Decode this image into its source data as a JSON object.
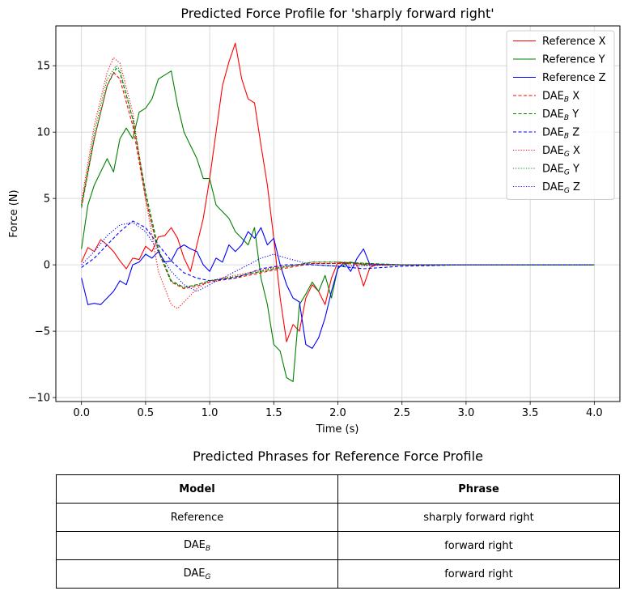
{
  "chart_data": {
    "type": "line",
    "title": "Predicted Force Profile for 'sharply forward right'",
    "xlabel": "Time (s)",
    "ylabel": "Force (N)",
    "xlim": [
      -0.2,
      4.2
    ],
    "ylim": [
      -10.3,
      18.0
    ],
    "xticks": [
      0.0,
      0.5,
      1.0,
      1.5,
      2.0,
      2.5,
      3.0,
      3.5,
      4.0
    ],
    "xtick_labels": [
      "0.0",
      "0.5",
      "1.0",
      "1.5",
      "2.0",
      "2.5",
      "3.0",
      "3.5",
      "4.0"
    ],
    "yticks": [
      -10,
      -5,
      0,
      5,
      10,
      15
    ],
    "ytick_labels": [
      "−10",
      "−5",
      "0",
      "5",
      "10",
      "15"
    ],
    "grid": true,
    "legend_position": "top-right",
    "series": [
      {
        "name": "Reference X",
        "legend_main": "Reference X",
        "legend_sub": "",
        "legend_suffix": "",
        "color": "#ff0000",
        "dash": "solid",
        "x": [
          0,
          0.05,
          0.1,
          0.15,
          0.2,
          0.25,
          0.3,
          0.35,
          0.4,
          0.45,
          0.5,
          0.55,
          0.6,
          0.65,
          0.7,
          0.75,
          0.8,
          0.85,
          0.9,
          0.95,
          1.0,
          1.05,
          1.1,
          1.15,
          1.2,
          1.25,
          1.3,
          1.35,
          1.4,
          1.45,
          1.5,
          1.55,
          1.6,
          1.65,
          1.7,
          1.75,
          1.8,
          1.85,
          1.9,
          1.95,
          2.0,
          2.05,
          2.1,
          2.15,
          2.2,
          2.25,
          2.3,
          2.5,
          3.0,
          3.5,
          4.0
        ],
        "y": [
          0.2,
          1.3,
          1.0,
          1.9,
          1.5,
          1.0,
          0.3,
          -0.3,
          0.5,
          0.4,
          1.4,
          1.0,
          2.1,
          2.2,
          2.8,
          2.0,
          0.5,
          -0.5,
          1.5,
          3.5,
          6.5,
          10.0,
          13.5,
          15.3,
          16.7,
          14.0,
          12.5,
          12.2,
          9.0,
          6.0,
          2.0,
          -2.5,
          -5.8,
          -4.5,
          -5.0,
          -2.5,
          -1.5,
          -2.0,
          -3.0,
          -1.0,
          0.2,
          0.1,
          0.2,
          0.0,
          -1.6,
          -0.2,
          0.0,
          0.0,
          0.0,
          0.0,
          0.0
        ]
      },
      {
        "name": "Reference Y",
        "legend_main": "Reference Y",
        "legend_sub": "",
        "legend_suffix": "",
        "color": "#008000",
        "dash": "solid",
        "x": [
          0,
          0.05,
          0.1,
          0.15,
          0.2,
          0.25,
          0.3,
          0.35,
          0.4,
          0.45,
          0.5,
          0.55,
          0.6,
          0.65,
          0.7,
          0.75,
          0.8,
          0.85,
          0.9,
          0.95,
          1.0,
          1.05,
          1.1,
          1.15,
          1.2,
          1.25,
          1.3,
          1.35,
          1.4,
          1.45,
          1.5,
          1.55,
          1.6,
          1.65,
          1.7,
          1.75,
          1.8,
          1.85,
          1.9,
          1.95,
          2.0,
          2.05,
          2.1,
          2.2,
          2.5,
          3.0,
          3.5,
          4.0
        ],
        "y": [
          1.2,
          4.5,
          6.0,
          7.0,
          8.0,
          7.0,
          9.5,
          10.3,
          9.5,
          11.5,
          11.8,
          12.5,
          14.0,
          14.3,
          14.6,
          12.0,
          10.0,
          9.0,
          8.0,
          6.5,
          6.5,
          4.5,
          4.0,
          3.5,
          2.5,
          2.0,
          1.5,
          2.8,
          -1.0,
          -3.0,
          -6.0,
          -6.5,
          -8.5,
          -8.8,
          -3.0,
          -2.2,
          -1.3,
          -2.0,
          -0.8,
          -2.5,
          -0.2,
          0.0,
          0.2,
          0.0,
          0.0,
          0.0,
          0.0,
          0.0
        ]
      },
      {
        "name": "Reference Z",
        "legend_main": "Reference Z",
        "legend_sub": "",
        "legend_suffix": "",
        "color": "#0000ff",
        "dash": "solid",
        "x": [
          0,
          0.05,
          0.1,
          0.15,
          0.2,
          0.25,
          0.3,
          0.35,
          0.4,
          0.45,
          0.5,
          0.55,
          0.6,
          0.65,
          0.7,
          0.75,
          0.8,
          0.85,
          0.9,
          0.95,
          1.0,
          1.05,
          1.1,
          1.15,
          1.2,
          1.25,
          1.3,
          1.35,
          1.4,
          1.45,
          1.5,
          1.55,
          1.6,
          1.65,
          1.7,
          1.75,
          1.8,
          1.85,
          1.9,
          1.95,
          2.0,
          2.05,
          2.1,
          2.15,
          2.2,
          2.25,
          2.3,
          2.5,
          3.0,
          3.5,
          4.0
        ],
        "y": [
          -1.0,
          -3.0,
          -2.9,
          -3.0,
          -2.5,
          -2.0,
          -1.2,
          -1.5,
          0.0,
          0.2,
          0.8,
          0.5,
          1.0,
          0.2,
          0.3,
          1.2,
          1.5,
          1.2,
          1.0,
          0.0,
          -0.5,
          0.5,
          0.2,
          1.5,
          1.0,
          1.5,
          2.5,
          2.0,
          2.8,
          1.5,
          2.0,
          0.0,
          -1.5,
          -2.5,
          -2.8,
          -6.0,
          -6.3,
          -5.5,
          -4.0,
          -2.0,
          -0.3,
          0.2,
          -0.5,
          0.5,
          1.2,
          0.0,
          0.0,
          0.0,
          0.0,
          0.0,
          0.0
        ]
      },
      {
        "name": "DAE_B X",
        "legend_main": "DAE",
        "legend_sub": "B",
        "legend_suffix": " X",
        "color": "#ff0000",
        "dash": "dashed",
        "x": [
          0,
          0.1,
          0.2,
          0.25,
          0.3,
          0.4,
          0.5,
          0.6,
          0.7,
          0.8,
          0.9,
          1.0,
          1.2,
          1.5,
          1.8,
          2.0,
          2.5,
          3.0,
          4.0
        ],
        "y": [
          4.5,
          9.5,
          13.5,
          14.5,
          14.0,
          10.5,
          5.0,
          1.0,
          -1.3,
          -1.8,
          -1.6,
          -1.3,
          -1.0,
          -0.4,
          0.1,
          0.1,
          0.0,
          0.0,
          0.0
        ]
      },
      {
        "name": "DAE_B Y",
        "legend_main": "DAE",
        "legend_sub": "B",
        "legend_suffix": " Y",
        "color": "#008000",
        "dash": "dashed",
        "x": [
          0,
          0.1,
          0.2,
          0.27,
          0.3,
          0.4,
          0.5,
          0.6,
          0.7,
          0.8,
          0.9,
          1.0,
          1.2,
          1.5,
          1.8,
          2.0,
          2.5,
          3.0,
          4.0
        ],
        "y": [
          4.3,
          9.5,
          13.5,
          14.8,
          14.5,
          11.0,
          5.5,
          1.2,
          -1.2,
          -1.7,
          -1.5,
          -1.2,
          -0.9,
          -0.3,
          0.2,
          0.2,
          0.0,
          0.0,
          0.0
        ]
      },
      {
        "name": "DAE_B Z",
        "legend_main": "DAE",
        "legend_sub": "B",
        "legend_suffix": " Z",
        "color": "#0000ff",
        "dash": "dashed",
        "x": [
          0,
          0.1,
          0.2,
          0.3,
          0.4,
          0.5,
          0.6,
          0.7,
          0.8,
          0.9,
          1.0,
          1.2,
          1.4,
          1.6,
          1.8,
          2.0,
          2.2,
          2.5,
          3.0,
          4.0
        ],
        "y": [
          -0.2,
          0.5,
          1.5,
          2.5,
          3.3,
          2.8,
          1.5,
          0.3,
          -0.6,
          -1.0,
          -1.2,
          -1.0,
          -0.3,
          0.0,
          0.0,
          -0.1,
          -0.3,
          -0.1,
          0.0,
          0.0
        ]
      },
      {
        "name": "DAE_G X",
        "legend_main": "DAE",
        "legend_sub": "G",
        "legend_suffix": " X",
        "color": "#ff0000",
        "dash": "dotted",
        "x": [
          0,
          0.1,
          0.2,
          0.25,
          0.3,
          0.4,
          0.5,
          0.6,
          0.7,
          0.75,
          0.8,
          0.9,
          1.0,
          1.2,
          1.5,
          1.8,
          2.0,
          2.5,
          3.0,
          4.0
        ],
        "y": [
          4.8,
          10.5,
          14.5,
          15.6,
          15.2,
          11.5,
          5.0,
          -0.5,
          -3.0,
          -3.3,
          -2.8,
          -1.8,
          -1.2,
          -0.8,
          -0.2,
          0.1,
          0.1,
          0.0,
          0.0,
          0.0
        ]
      },
      {
        "name": "DAE_G Y",
        "legend_main": "DAE",
        "legend_sub": "G",
        "legend_suffix": " Y",
        "color": "#008000",
        "dash": "dotted",
        "x": [
          0,
          0.1,
          0.2,
          0.27,
          0.3,
          0.4,
          0.5,
          0.6,
          0.7,
          0.8,
          0.9,
          1.0,
          1.2,
          1.5,
          1.8,
          2.0,
          2.5,
          3.0,
          4.0
        ],
        "y": [
          4.5,
          10.0,
          14.0,
          15.0,
          14.7,
          11.0,
          5.2,
          1.0,
          -1.3,
          -1.7,
          -1.5,
          -1.2,
          -0.9,
          -0.3,
          0.2,
          0.2,
          0.0,
          0.0,
          0.0
        ]
      },
      {
        "name": "DAE_G Z",
        "legend_main": "DAE",
        "legend_sub": "G",
        "legend_suffix": " Z",
        "color": "#0000ff",
        "dash": "dotted",
        "x": [
          0,
          0.1,
          0.2,
          0.3,
          0.4,
          0.5,
          0.6,
          0.7,
          0.8,
          0.9,
          1.0,
          1.2,
          1.4,
          1.5,
          1.6,
          1.8,
          2.0,
          2.5,
          3.0,
          4.0
        ],
        "y": [
          0.0,
          1.0,
          2.2,
          3.0,
          3.2,
          2.5,
          1.0,
          -0.5,
          -1.5,
          -2.0,
          -1.5,
          -0.5,
          0.5,
          0.8,
          0.5,
          0.0,
          -0.1,
          0.0,
          0.0,
          0.0
        ]
      }
    ]
  },
  "table": {
    "title": "Predicted Phrases for Reference Force Profile",
    "headers": [
      "Model",
      "Phrase"
    ],
    "rows": [
      {
        "model_main": "Reference",
        "model_sub": "",
        "phrase": "sharply forward right"
      },
      {
        "model_main": "DAE",
        "model_sub": "B",
        "phrase": "forward right"
      },
      {
        "model_main": "DAE",
        "model_sub": "G",
        "phrase": "forward right"
      }
    ]
  }
}
